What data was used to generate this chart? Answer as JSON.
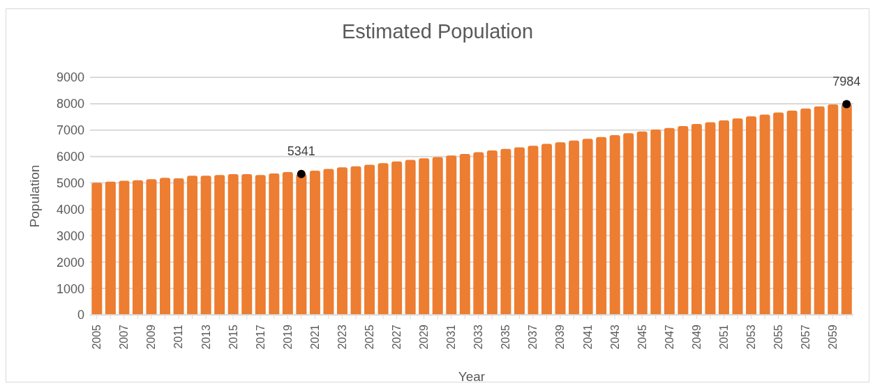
{
  "chart_data": {
    "type": "bar",
    "title": "Estimated Population",
    "xlabel": "Year",
    "ylabel": "Population",
    "categories": [
      "2005",
      null,
      "2007",
      null,
      "2009",
      null,
      "2011",
      null,
      "2013",
      null,
      "2015",
      null,
      "2017",
      null,
      "2019",
      null,
      "2021",
      null,
      "2023",
      null,
      "2025",
      null,
      "2027",
      null,
      "2029",
      null,
      "2031",
      null,
      "2033",
      null,
      "2035",
      null,
      "2037",
      null,
      "2039",
      null,
      "2041",
      null,
      "2043",
      null,
      "2045",
      null,
      "2047",
      null,
      "2049",
      null,
      "2051",
      null,
      "2053",
      null,
      "2055",
      null,
      "2057",
      null,
      "2059",
      null
    ],
    "series": [
      {
        "color": "#ed7d31",
        "values": [
          5010,
          5050,
          5080,
          5100,
          5140,
          5190,
          5170,
          5270,
          5270,
          5300,
          5330,
          5330,
          5300,
          5360,
          5410,
          5341,
          5465,
          5530,
          5590,
          5630,
          5690,
          5750,
          5810,
          5870,
          5930,
          5980,
          6040,
          6100,
          6160,
          6230,
          6290,
          6350,
          6410,
          6480,
          6540,
          6605,
          6670,
          6740,
          6810,
          6880,
          6950,
          7020,
          7080,
          7150,
          7230,
          7300,
          7370,
          7440,
          7520,
          7590,
          7670,
          7740,
          7820,
          7900,
          7970,
          7984
        ]
      },
      {
        "type": "scatter",
        "color": "#000000",
        "marker": "circle",
        "values": [
          null,
          null,
          null,
          null,
          null,
          null,
          null,
          null,
          null,
          null,
          null,
          null,
          null,
          null,
          null,
          5341,
          null,
          null,
          null,
          null,
          null,
          null,
          null,
          null,
          null,
          null,
          null,
          null,
          null,
          null,
          null,
          null,
          null,
          null,
          null,
          null,
          null,
          null,
          null,
          null,
          null,
          null,
          null,
          null,
          null,
          null,
          null,
          null,
          null,
          null,
          null,
          null,
          null,
          null,
          null,
          7984
        ],
        "value_labels": [
          null,
          null,
          null,
          null,
          null,
          null,
          null,
          null,
          null,
          null,
          null,
          null,
          null,
          null,
          null,
          "5341",
          null,
          null,
          null,
          null,
          null,
          null,
          null,
          null,
          null,
          null,
          null,
          null,
          null,
          null,
          null,
          null,
          null,
          null,
          null,
          null,
          null,
          null,
          null,
          null,
          null,
          null,
          null,
          null,
          null,
          null,
          null,
          null,
          null,
          null,
          null,
          null,
          null,
          null,
          null,
          "7984"
        ]
      }
    ],
    "ylim": [
      0,
      9000
    ],
    "yticks": [
      0,
      1000,
      2000,
      3000,
      4000,
      5000,
      6000,
      7000,
      8000,
      9000
    ],
    "grid": "y"
  }
}
